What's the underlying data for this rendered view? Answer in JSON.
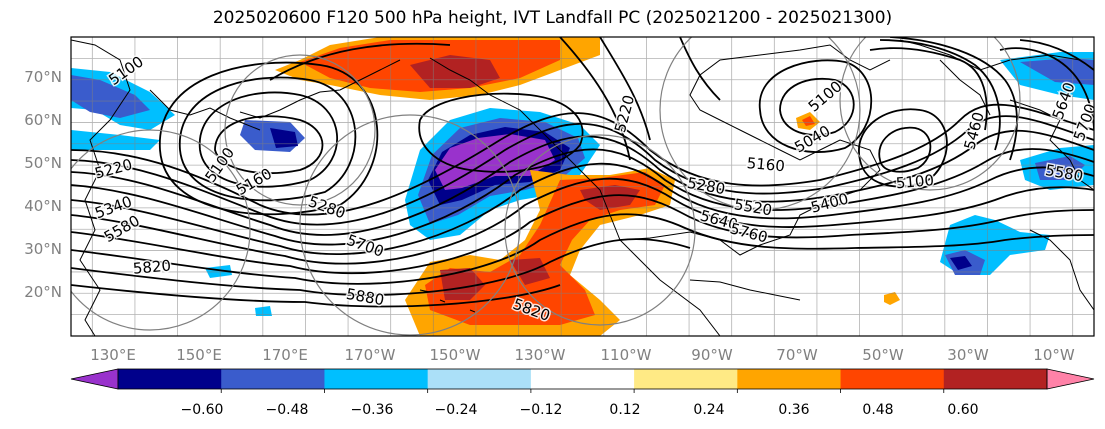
{
  "title": "2025020600 F120 500 hPa height, IVT Landfall PC (2025021200 - 2025021300)",
  "lat_labels": [
    "70°N",
    "60°N",
    "50°N",
    "40°N",
    "30°N",
    "20°N"
  ],
  "lon_labels": [
    "130°E",
    "150°E",
    "170°E",
    "170°W",
    "150°W",
    "130°W",
    "110°W",
    "90°W",
    "70°W",
    "50°W",
    "30°W",
    "10°W"
  ],
  "colorbar": {
    "colors": [
      "#9932cc",
      "#00008b",
      "#3a5ccc",
      "#00bfff",
      "#abe0f8",
      "#ffffff",
      "#ffea85",
      "#ffa500",
      "#ff4500",
      "#b22222",
      "#ff82a8"
    ],
    "tick_labels": [
      "−0.60",
      "−0.48",
      "−0.36",
      "−0.24",
      "−0.12",
      "0.12",
      "0.24",
      "0.36",
      "0.48",
      "0.60"
    ],
    "extend": "both"
  },
  "contour_labels": [
    {
      "text": "5100",
      "lon": 128,
      "lat": 72,
      "rot": -35
    },
    {
      "text": "5100",
      "lon": 150,
      "lat": 50,
      "rot": -55
    },
    {
      "text": "5160",
      "lon": 158,
      "lat": 46,
      "rot": -30
    },
    {
      "text": "5220",
      "lon": 125,
      "lat": 49,
      "rot": -15
    },
    {
      "text": "5340",
      "lon": 125,
      "lat": 40,
      "rot": -20
    },
    {
      "text": "5580",
      "lon": 127,
      "lat": 35,
      "rot": -30
    },
    {
      "text": "5280",
      "lon": 175,
      "lat": 40,
      "rot": 20
    },
    {
      "text": "5700",
      "lon": -176,
      "lat": 31,
      "rot": 20
    },
    {
      "text": "5820",
      "lon": 134,
      "lat": 26,
      "rot": -5
    },
    {
      "text": "5880",
      "lon": -176,
      "lat": 19,
      "rot": 10
    },
    {
      "text": "5820",
      "lon": -137,
      "lat": 16,
      "rot": 20
    },
    {
      "text": "5220",
      "lon": -115,
      "lat": 62,
      "rot": -75
    },
    {
      "text": "5160",
      "lon": -82,
      "lat": 50,
      "rot": 5
    },
    {
      "text": "5040",
      "lon": -71,
      "lat": 56,
      "rot": -30
    },
    {
      "text": "5100",
      "lon": -68,
      "lat": 66,
      "rot": -40
    },
    {
      "text": "5280",
      "lon": -96,
      "lat": 45,
      "rot": 10
    },
    {
      "text": "5520",
      "lon": -85,
      "lat": 40,
      "rot": 10
    },
    {
      "text": "5400",
      "lon": -67,
      "lat": 41,
      "rot": -15
    },
    {
      "text": "5640",
      "lon": -93,
      "lat": 37,
      "rot": 15
    },
    {
      "text": "5760",
      "lon": -86,
      "lat": 34,
      "rot": 15
    },
    {
      "text": "5100",
      "lon": -47,
      "lat": 46,
      "rot": -5
    },
    {
      "text": "5460",
      "lon": -33,
      "lat": 58,
      "rot": -75
    },
    {
      "text": "5640",
      "lon": -12,
      "lat": 65,
      "rot": -70
    },
    {
      "text": "5700",
      "lon": -7,
      "lat": 60,
      "rot": -70
    },
    {
      "text": "5580",
      "lon": -12,
      "lat": 48,
      "rot": 10
    }
  ]
}
